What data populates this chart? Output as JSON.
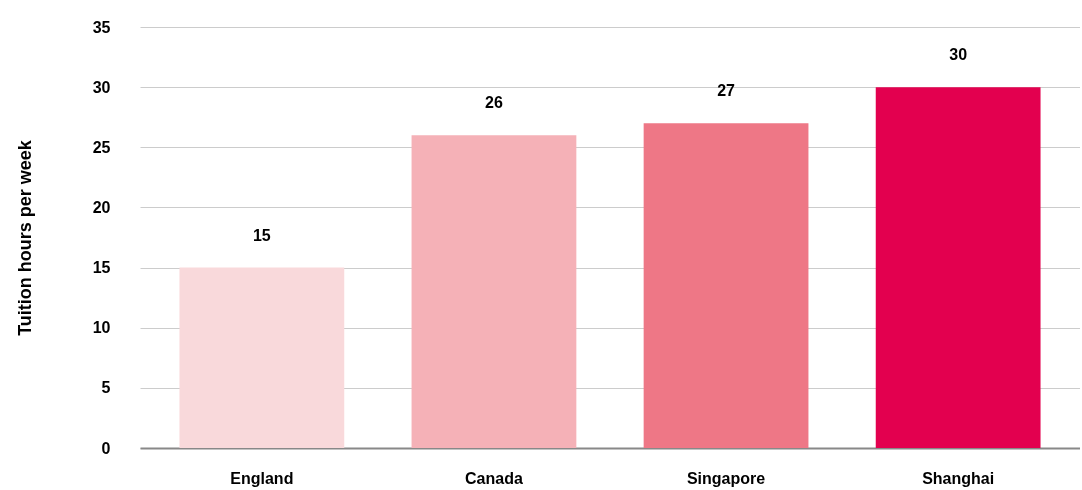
{
  "chart_data": {
    "type": "bar",
    "ylabel": "Tuition hours per week",
    "categories": [
      "England",
      "Canada",
      "Singapore",
      "Shanghai"
    ],
    "values": [
      15,
      26,
      27,
      30
    ],
    "colors": [
      "#f9d9db",
      "#f5b1b7",
      "#ee7786",
      "#e3004f"
    ],
    "ylim": [
      0,
      35
    ],
    "yticks": [
      0,
      5,
      10,
      15,
      20,
      25,
      30,
      35
    ],
    "grid": "y",
    "data_labels": true
  }
}
